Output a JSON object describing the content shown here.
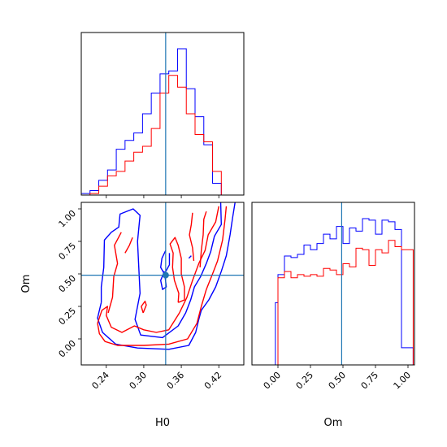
{
  "chart_data": {
    "type": "corner",
    "parameters": [
      "H0",
      "Om"
    ],
    "truths": {
      "H0": 0.335,
      "Om": 0.49
    },
    "colors": {
      "series_a": "#0000ff",
      "series_b": "#ff0000",
      "truth": "#1f77b4"
    },
    "grid": false,
    "xlabels": {
      "H0": "H0",
      "Om": "Om"
    },
    "ylabels": {
      "Om": "Om"
    },
    "h0_axis": {
      "range": [
        0.2,
        0.46
      ],
      "ticks": [
        0.24,
        0.3,
        0.36,
        0.42
      ],
      "tick_labels": [
        "0.24",
        "0.30",
        "0.36",
        "0.42"
      ]
    },
    "om_axis": {
      "range": [
        -0.2,
        1.05
      ],
      "ticks": [
        0.0,
        0.25,
        0.5,
        0.75,
        1.0
      ],
      "tick_labels": [
        "0.00",
        "0.25",
        "0.50",
        "0.75",
        "1.00"
      ]
    },
    "h0_histogram": {
      "bin_edges": [
        0.2,
        0.214,
        0.228,
        0.242,
        0.256,
        0.27,
        0.284,
        0.298,
        0.312,
        0.326,
        0.34,
        0.354,
        0.368,
        0.382,
        0.396,
        0.41,
        0.424,
        0.438,
        0.452
      ],
      "series": [
        {
          "counts": [
            0.01,
            0.03,
            0.1,
            0.17,
            0.31,
            0.37,
            0.42,
            0.55,
            0.69,
            0.82,
            0.84,
            0.99,
            0.72,
            0.53,
            0.34,
            0.08,
            0,
            0
          ]
        },
        {
          "counts": [
            0,
            0.01,
            0.06,
            0.13,
            0.16,
            0.23,
            0.29,
            0.33,
            0.45,
            0.69,
            0.81,
            0.73,
            0.55,
            0.41,
            0.36,
            0.16,
            0,
            0
          ]
        }
      ]
    },
    "om_histogram": {
      "bin_edges": [
        -0.1,
        -0.02,
        0.0,
        0.05,
        0.1,
        0.15,
        0.2,
        0.25,
        0.3,
        0.35,
        0.4,
        0.45,
        0.5,
        0.55,
        0.6,
        0.65,
        0.7,
        0.75,
        0.8,
        0.85,
        0.9,
        0.95,
        1.0,
        1.04
      ],
      "series": [
        {
          "counts": [
            0,
            0.4,
            0.58,
            0.7,
            0.69,
            0.71,
            0.77,
            0.74,
            0.78,
            0.84,
            0.81,
            0.89,
            0.78,
            0.88,
            0.86,
            0.94,
            0.93,
            0.84,
            0.93,
            0.92,
            0.87,
            0.11,
            0.11
          ]
        },
        {
          "counts": [
            0,
            0,
            0.56,
            0.6,
            0.56,
            0.58,
            0.57,
            0.58,
            0.57,
            0.62,
            0.61,
            0.58,
            0.65,
            0.63,
            0.75,
            0.74,
            0.64,
            0.74,
            0.72,
            0.8,
            0.76,
            0.74,
            0.74
          ]
        }
      ]
    },
    "contours_2d": [
      {
        "series": "series_a",
        "paths": [
          [
            [
              0.232,
              0.28
            ],
            [
              0.226,
              0.16
            ],
            [
              0.234,
              0.05
            ],
            [
              0.255,
              -0.04
            ],
            [
              0.29,
              -0.07
            ],
            [
              0.34,
              -0.08
            ],
            [
              0.372,
              -0.05
            ],
            [
              0.383,
              0.05
            ],
            [
              0.388,
              0.15
            ],
            [
              0.392,
              0.22
            ],
            [
              0.404,
              0.3
            ],
            [
              0.415,
              0.4
            ],
            [
              0.424,
              0.52
            ],
            [
              0.432,
              0.64
            ],
            [
              0.438,
              0.8
            ],
            [
              0.442,
              0.93
            ],
            [
              0.446,
              1.05
            ]
          ],
          [
            [
              0.423,
              1.05
            ],
            [
              0.424,
              0.88
            ],
            [
              0.413,
              0.79
            ],
            [
              0.407,
              0.67
            ],
            [
              0.4,
              0.58
            ],
            [
              0.391,
              0.48
            ],
            [
              0.381,
              0.4
            ],
            [
              0.375,
              0.3
            ],
            [
              0.367,
              0.2
            ],
            [
              0.355,
              0.1
            ],
            [
              0.33,
              0.01
            ],
            [
              0.295,
              0.03
            ],
            [
              0.286,
              0.15
            ],
            [
              0.294,
              0.35
            ],
            [
              0.292,
              0.55
            ],
            [
              0.29,
              0.75
            ],
            [
              0.294,
              0.95
            ],
            [
              0.283,
              1.0
            ],
            [
              0.262,
              0.96
            ],
            [
              0.26,
              0.86
            ],
            [
              0.248,
              0.82
            ],
            [
              0.237,
              0.76
            ],
            [
              0.236,
              0.55
            ],
            [
              0.232,
              0.4
            ],
            [
              0.232,
              0.28
            ]
          ],
          [
            [
              0.333,
              0.52
            ],
            [
              0.327,
              0.45
            ],
            [
              0.33,
              0.38
            ],
            [
              0.336,
              0.4
            ],
            [
              0.334,
              0.48
            ]
          ],
          [
            [
              0.335,
              0.68
            ],
            [
              0.329,
              0.62
            ],
            [
              0.327,
              0.55
            ],
            [
              0.333,
              0.5
            ],
            [
              0.341,
              0.57
            ],
            [
              0.341,
              0.66
            ]
          ],
          [
            [
              0.372,
              0.62
            ],
            [
              0.376,
              0.64
            ]
          ]
        ]
      },
      {
        "series": "series_b",
        "paths": [
          [
            [
              0.226,
              0.12
            ],
            [
              0.229,
              0.04
            ],
            [
              0.238,
              -0.02
            ],
            [
              0.258,
              -0.05
            ],
            [
              0.3,
              -0.05
            ],
            [
              0.34,
              -0.04
            ],
            [
              0.37,
              0.0
            ],
            [
              0.385,
              0.12
            ],
            [
              0.392,
              0.25
            ],
            [
              0.4,
              0.38
            ],
            [
              0.41,
              0.5
            ],
            [
              0.418,
              0.6
            ],
            [
              0.426,
              0.76
            ],
            [
              0.43,
              0.92
            ],
            [
              0.432,
              1.02
            ]
          ],
          [
            [
              0.42,
              1.02
            ],
            [
              0.415,
              0.9
            ],
            [
              0.403,
              0.8
            ],
            [
              0.398,
              0.68
            ],
            [
              0.388,
              0.58
            ],
            [
              0.378,
              0.45
            ],
            [
              0.369,
              0.32
            ],
            [
              0.357,
              0.2
            ],
            [
              0.34,
              0.07
            ],
            [
              0.32,
              0.05
            ],
            [
              0.3,
              0.07
            ],
            [
              0.285,
              0.1
            ],
            [
              0.265,
              0.05
            ],
            [
              0.248,
              0.09
            ],
            [
              0.24,
              0.18
            ],
            [
              0.242,
              0.25
            ],
            [
              0.233,
              0.22
            ],
            [
              0.226,
              0.12
            ]
          ],
          [
            [
              0.243,
              0.2
            ],
            [
              0.25,
              0.32
            ],
            [
              0.252,
              0.48
            ],
            [
              0.258,
              0.58
            ],
            [
              0.253,
              0.72
            ],
            [
              0.264,
              0.82
            ]
          ],
          [
            [
              0.282,
              0.78
            ],
            [
              0.277,
              0.72
            ],
            [
              0.27,
              0.66
            ]
          ],
          [
            [
              0.299,
              0.2
            ],
            [
              0.304,
              0.26
            ],
            [
              0.302,
              0.29
            ],
            [
              0.296,
              0.25
            ],
            [
              0.299,
              0.2
            ]
          ],
          [
            [
              0.355,
              0.28
            ],
            [
              0.356,
              0.35
            ],
            [
              0.349,
              0.45
            ],
            [
              0.346,
              0.55
            ],
            [
              0.347,
              0.66
            ],
            [
              0.342,
              0.73
            ],
            [
              0.35,
              0.78
            ],
            [
              0.355,
              0.72
            ],
            [
              0.36,
              0.62
            ],
            [
              0.36,
              0.5
            ],
            [
              0.365,
              0.4
            ],
            [
              0.365,
              0.3
            ],
            [
              0.355,
              0.28
            ]
          ],
          [
            [
              0.38,
              0.6
            ],
            [
              0.378,
              0.7
            ],
            [
              0.373,
              0.8
            ],
            [
              0.376,
              0.88
            ],
            [
              0.378,
              0.97
            ]
          ],
          [
            [
              0.39,
              0.55
            ],
            [
              0.392,
              0.68
            ],
            [
              0.395,
              0.8
            ],
            [
              0.396,
              0.92
            ],
            [
              0.4,
              0.98
            ]
          ]
        ]
      }
    ],
    "truth_point_color": "#1f77b4"
  }
}
